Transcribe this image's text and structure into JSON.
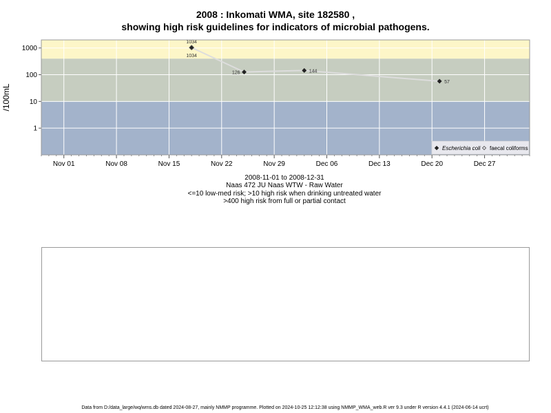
{
  "chart_data": {
    "type": "scatter",
    "title": "2008 : Inkomati WMA, site 182580 ,",
    "subtitle": "showing high risk guidelines for indicators of microbial pathogens.",
    "ylabel": "/100mL",
    "yscale": "log",
    "yticks": [
      "1",
      "10",
      "100",
      "1000"
    ],
    "ylim": [
      0.1,
      2000
    ],
    "xlim": [
      "2008-10-29",
      "2009-01-02"
    ],
    "xticks": [
      "Nov 01",
      "Nov 08",
      "Nov 15",
      "Nov 22",
      "Nov 29",
      "Dec 06",
      "Dec 13",
      "Dec 20",
      "Dec 27"
    ],
    "bands": [
      {
        "from": 0.1,
        "to": 10,
        "color": "#a3b3cb"
      },
      {
        "from": 10,
        "to": 400,
        "color": "#c6cdc0"
      },
      {
        "from": 400,
        "to": 2000,
        "color": "#fdf6c8"
      }
    ],
    "series": [
      {
        "name": "Escherichia coli",
        "marker": "filled-diamond",
        "color": "#222222",
        "points": [
          {
            "x": "2008-11-18",
            "y": 1034,
            "label": "1034"
          },
          {
            "x": "2008-11-25",
            "y": 126,
            "label": "126"
          },
          {
            "x": "2008-12-03",
            "y": 144,
            "label": "144"
          },
          {
            "x": "2008-12-21",
            "y": 57,
            "label": "57"
          }
        ]
      },
      {
        "name": "faecal coliforms",
        "marker": "open-diamond",
        "color": "#444444",
        "points": [
          {
            "x": "2008-11-18",
            "y": 1034,
            "label": "1034"
          }
        ]
      }
    ],
    "legend_position": "bottom-right"
  },
  "caption": {
    "line1": "2008-11-01 to 2008-12-31",
    "line2": "Naas 472 JU Naas WTW - Raw Water",
    "line3": "<=10 low-med risk; >10 high risk when drinking untreated water",
    "line4": ">400 high risk from full or partial contact"
  },
  "footer": "Data from D:/data_large/wq/wms.db dated 2024-08-27, mainly NMMP programme. Plotted on 2024-10-25 12:12:38 using NMMP_WMA_web.R ver 9.3 under R version 4.4.1 (2024-06-14 ucrt)"
}
